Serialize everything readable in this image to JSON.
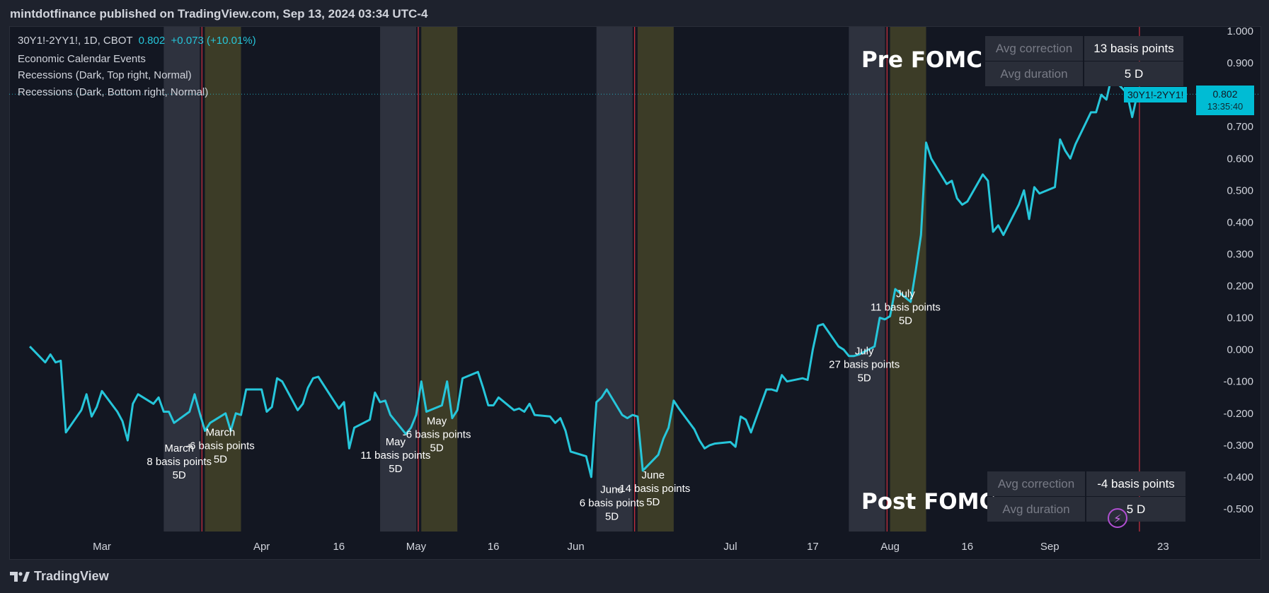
{
  "header": {
    "publisher_line": "mintdotfinance published on TradingView.com, Sep 13, 2024 03:34 UTC-4"
  },
  "legend": {
    "symbol": "30Y1!-2YY1!, 1D, CBOT",
    "last": "0.802",
    "change": "+0.073 (+10.01%)",
    "indicators": [
      "Economic Calendar Events",
      "Recessions (Dark, Top right, Normal)",
      "Recessions (Dark, Bottom right, Normal)"
    ]
  },
  "price_tag": {
    "series": "30Y1!-2YY1!",
    "price": "0.802",
    "countdown": "13:35:40"
  },
  "pre_fomc": {
    "title": "Pre FOMC",
    "rows": [
      {
        "label": "Avg correction",
        "value": "13 basis points"
      },
      {
        "label": "Avg duration",
        "value": "5 D"
      }
    ]
  },
  "post_fomc": {
    "title": "Post FOMC",
    "rows": [
      {
        "label": "Avg correction",
        "value": "-4 basis points"
      },
      {
        "label": "Avg duration",
        "value": "5 D"
      }
    ]
  },
  "footer": {
    "brand": "TradingView"
  },
  "colors": {
    "background": "#131722",
    "line": "#26c6da",
    "pre_band": "#3a3e4a",
    "post_band": "#4b4a2a",
    "event_line": "#f23645"
  },
  "chart_data": {
    "type": "line",
    "title": "30Y1!-2YY1!, 1D, CBOT",
    "xlabel": "",
    "ylabel": "",
    "ylim": [
      -0.58,
      1.0
    ],
    "y_ticks": [
      1.0,
      0.9,
      0.8,
      0.7,
      0.6,
      0.5,
      0.4,
      0.3,
      0.2,
      0.1,
      0.0,
      -0.1,
      -0.2,
      -0.3,
      -0.4,
      -0.5
    ],
    "y_tick_labels": [
      "1.000",
      "0.900",
      "0.800",
      "0.700",
      "0.600",
      "0.500",
      "0.400",
      "0.300",
      "0.200",
      "0.100",
      "0.000",
      "-0.100",
      "-0.200",
      "-0.300",
      "-0.400",
      "-0.500"
    ],
    "x_ticks": [
      {
        "label": "Mar",
        "date": "2024-03-01"
      },
      {
        "label": "Apr",
        "date": "2024-04-01"
      },
      {
        "label": "16",
        "date": "2024-04-16"
      },
      {
        "label": "May",
        "date": "2024-05-01"
      },
      {
        "label": "16",
        "date": "2024-05-16"
      },
      {
        "label": "Jun",
        "date": "2024-06-01"
      },
      {
        "label": "Jul",
        "date": "2024-07-01"
      },
      {
        "label": "17",
        "date": "2024-07-17"
      },
      {
        "label": "Aug",
        "date": "2024-08-01"
      },
      {
        "label": "16",
        "date": "2024-08-16"
      },
      {
        "label": "Sep",
        "date": "2024-09-01"
      },
      {
        "label": "23",
        "date": "2024-09-23"
      }
    ],
    "series": [
      {
        "name": "30Y1!-2YY1!",
        "values": [
          0.01,
          -0.04,
          -0.015,
          -0.04,
          -0.035,
          -0.26,
          -0.19,
          -0.14,
          -0.21,
          -0.18,
          -0.13,
          -0.195,
          -0.225,
          -0.285,
          -0.17,
          -0.14,
          -0.17,
          -0.15,
          -0.195,
          -0.195,
          -0.23,
          -0.195,
          -0.14,
          -0.2,
          -0.255,
          -0.23,
          -0.2,
          -0.255,
          -0.2,
          -0.205,
          -0.125,
          -0.125,
          -0.195,
          -0.18,
          -0.09,
          -0.1,
          -0.19,
          -0.17,
          -0.12,
          -0.09,
          -0.085,
          -0.16,
          -0.185,
          -0.165,
          -0.31,
          -0.245,
          -0.22,
          -0.135,
          -0.165,
          -0.16,
          -0.205,
          -0.265,
          -0.245,
          -0.205,
          -0.1,
          -0.195,
          -0.175,
          -0.1,
          -0.215,
          -0.19,
          -0.09,
          -0.07,
          -0.12,
          -0.175,
          -0.175,
          -0.15,
          -0.19,
          -0.185,
          -0.195,
          -0.17,
          -0.205,
          -0.21,
          -0.23,
          -0.215,
          -0.255,
          -0.32,
          -0.335,
          -0.4,
          -0.165,
          -0.15,
          -0.125,
          -0.205,
          -0.215,
          -0.205,
          -0.21,
          -0.38,
          -0.33,
          -0.28,
          -0.245,
          -0.16,
          -0.185,
          -0.25,
          -0.285,
          -0.31,
          -0.3,
          -0.295,
          -0.29,
          -0.305,
          -0.21,
          -0.22,
          -0.26,
          -0.125,
          -0.125,
          -0.13,
          -0.08,
          -0.1,
          -0.09,
          -0.095,
          -0.0,
          0.075,
          0.08,
          0.01,
          0.0,
          -0.02,
          -0.02,
          -0.015,
          0.01,
          0.1,
          0.095,
          0.105,
          0.19,
          0.15,
          0.25,
          0.36,
          0.65,
          0.6,
          0.52,
          0.53,
          0.475,
          0.455,
          0.465,
          0.55,
          0.53,
          0.37,
          0.39,
          0.36,
          0.455,
          0.5,
          0.41,
          0.51,
          0.49,
          0.51,
          0.66,
          0.625,
          0.6,
          0.645,
          0.745,
          0.745,
          0.8,
          0.785,
          0.855,
          0.805,
          0.73,
          0.802
        ],
        "start_date": "2024-02-16"
      }
    ],
    "event_bands": [
      {
        "type": "pre",
        "start": "2024-03-13",
        "end": "2024-03-19"
      },
      {
        "type": "post",
        "start": "2024-03-21",
        "end": "2024-03-27"
      },
      {
        "type": "pre",
        "start": "2024-04-24",
        "end": "2024-04-30"
      },
      {
        "type": "post",
        "start": "2024-05-02",
        "end": "2024-05-08"
      },
      {
        "type": "pre",
        "start": "2024-06-05",
        "end": "2024-06-11"
      },
      {
        "type": "post",
        "start": "2024-06-13",
        "end": "2024-06-19"
      },
      {
        "type": "pre",
        "start": "2024-07-24",
        "end": "2024-07-30"
      },
      {
        "type": "post",
        "start": "2024-08-01",
        "end": "2024-08-07"
      }
    ],
    "event_lines": [
      "2024-03-20",
      "2024-05-01",
      "2024-06-12",
      "2024-07-31",
      "2024-09-18"
    ],
    "annotations": [
      {
        "lines": [
          "March",
          "8 basis points",
          "5D"
        ],
        "date": "2024-03-16",
        "y": -0.32
      },
      {
        "lines": [
          "March",
          "-6 basis points",
          "5D"
        ],
        "date": "2024-03-24",
        "y": -0.27
      },
      {
        "lines": [
          "May",
          "11 basis points",
          "5D"
        ],
        "date": "2024-04-27",
        "y": -0.3
      },
      {
        "lines": [
          "May",
          "-6 basis points",
          "5D"
        ],
        "date": "2024-05-05",
        "y": -0.235
      },
      {
        "lines": [
          "June",
          "6 basis points",
          "5D"
        ],
        "date": "2024-06-08",
        "y": -0.45
      },
      {
        "lines": [
          "June",
          "-14 basis points",
          "5D"
        ],
        "date": "2024-06-16",
        "y": -0.405
      },
      {
        "lines": [
          "July",
          "27 basis points",
          "5D"
        ],
        "date": "2024-07-27",
        "y": -0.015
      },
      {
        "lines": [
          "July",
          "11 basis points",
          "5D"
        ],
        "date": "2024-08-04",
        "y": 0.165
      }
    ]
  }
}
